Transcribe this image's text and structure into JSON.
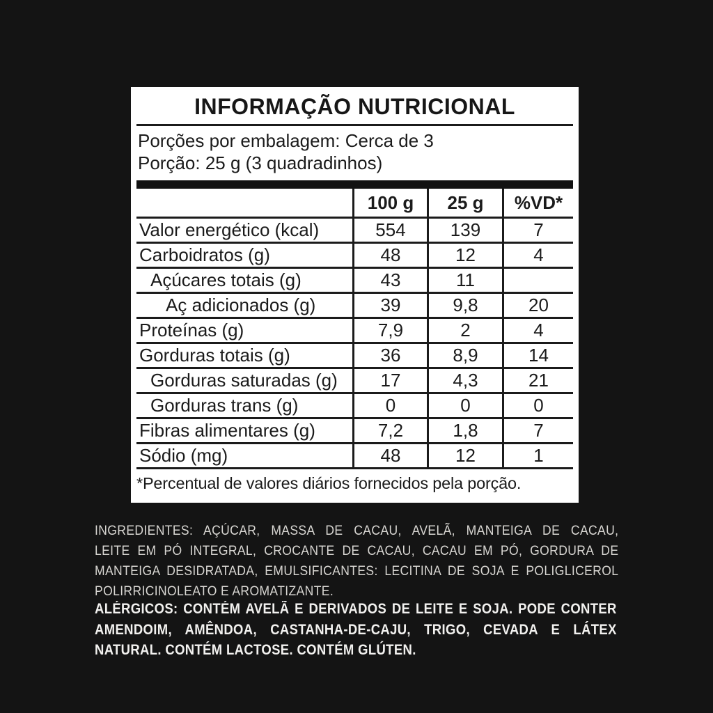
{
  "panel": {
    "title": "INFORMAÇÃO NUTRICIONAL",
    "servings_per_package": "Porções por embalagem: Cerca de 3",
    "serving_size": "Porção: 25 g (3 quadradinhos)",
    "footnote": "*Percentual de valores diários fornecidos pela porção."
  },
  "table": {
    "columns": [
      "",
      "100 g",
      "25 g",
      "%VD*"
    ],
    "rows": [
      {
        "label": "Valor energético (kcal)",
        "per_100g": "554",
        "per_25g": "139",
        "vd": "7",
        "indent": 0
      },
      {
        "label": "Carboidratos (g)",
        "per_100g": "48",
        "per_25g": "12",
        "vd": "4",
        "indent": 0
      },
      {
        "label": "Açúcares totais (g)",
        "per_100g": "43",
        "per_25g": "11",
        "vd": "",
        "indent": 1
      },
      {
        "label": "Aç adicionados (g)",
        "per_100g": "39",
        "per_25g": "9,8",
        "vd": "20",
        "indent": 2
      },
      {
        "label": "Proteínas (g)",
        "per_100g": "7,9",
        "per_25g": "2",
        "vd": "4",
        "indent": 0
      },
      {
        "label": "Gorduras totais (g)",
        "per_100g": "36",
        "per_25g": "8,9",
        "vd": "14",
        "indent": 0
      },
      {
        "label": "Gorduras saturadas (g)",
        "per_100g": "17",
        "per_25g": "4,3",
        "vd": "21",
        "indent": 1
      },
      {
        "label": "Gorduras trans (g)",
        "per_100g": "0",
        "per_25g": "0",
        "vd": "0",
        "indent": 1
      },
      {
        "label": "Fibras alimentares (g)",
        "per_100g": "7,2",
        "per_25g": "1,8",
        "vd": "7",
        "indent": 0
      },
      {
        "label": "Sódio (mg)",
        "per_100g": "48",
        "per_25g": "12",
        "vd": "1",
        "indent": 0
      }
    ]
  },
  "ingredients": {
    "lines": [
      "INGREDIENTES: AÇÚCAR, MASSA DE CACAU, AVELÃ, MANTEIGA DE CACAU,",
      "LEITE EM PÓ INTEGRAL, CROCANTE DE CACAU, CACAU EM PÓ, GORDURA DE",
      "MANTEIGA DESIDRATADA, EMULSIFICANTES: LECITINA DE SOJA E POLIGLICEROL",
      "POLIRRICINOLEATO E AROMATIZANTE."
    ]
  },
  "allergens": {
    "lines": [
      "ALÉRGICOS: CONTÉM AVELÃ E DERIVADOS DE LEITE E SOJA. PODE CONTER",
      "AMENDOIM, AMÊNDOA, CASTANHA-DE-CAJU, TRIGO, CEVADA E LÁTEX",
      "NATURAL. CONTÉM LACTOSE. CONTÉM GLÚTEN."
    ]
  },
  "colors": {
    "page_background": "#141414",
    "panel_background": "#ffffff",
    "panel_text": "#1b1b1b",
    "ingredients_text": "#d8d6d2",
    "allergens_text": "#f2f1ef"
  }
}
